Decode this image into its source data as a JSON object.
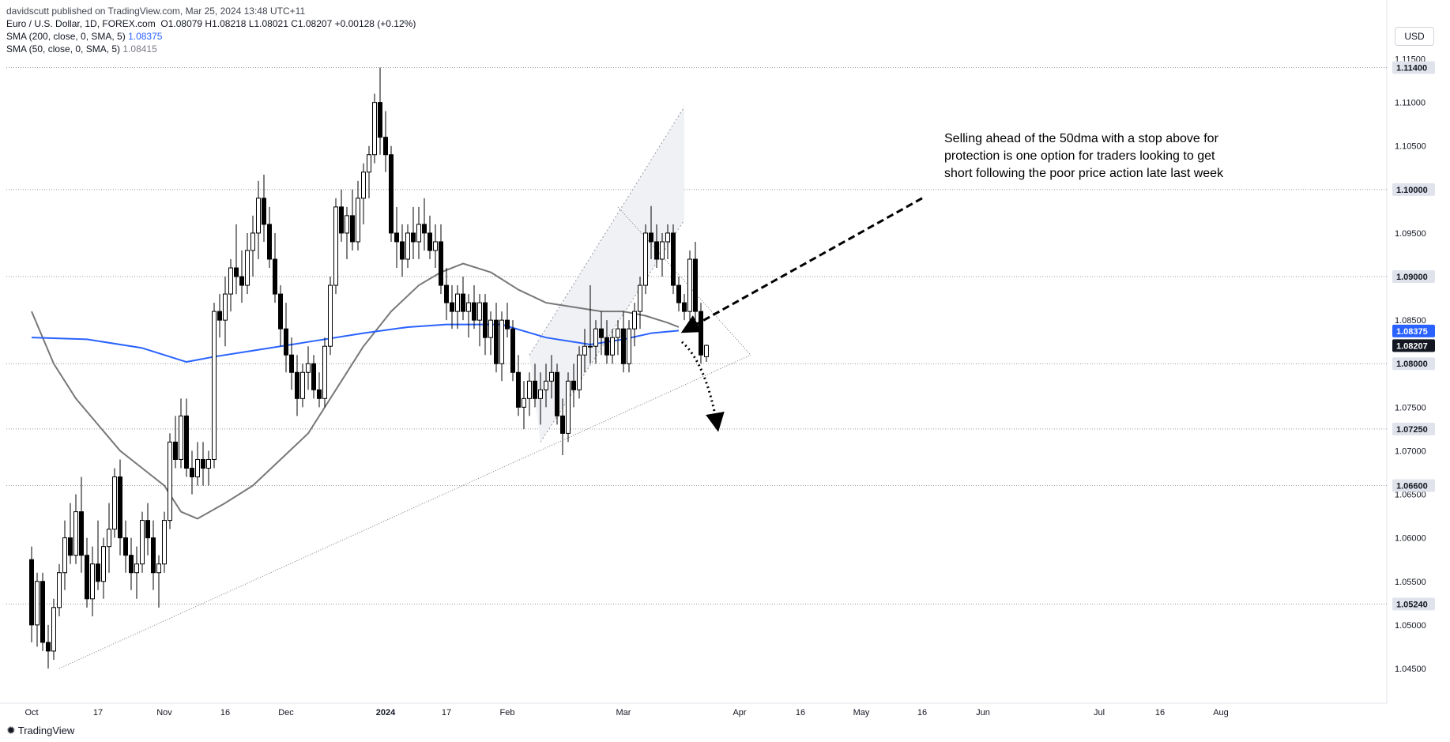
{
  "header": {
    "publisher_line": "davidscutt published on TradingView.com, Mar 25, 2024 13:48 UTC+11",
    "symbol_line": "Euro / U.S. Dollar, 1D, FOREX.com",
    "ohlc": "O1.08079  H1.08218  L1.08021  C1.08207  +0.00128 (+0.12%)",
    "sma200_label": "SMA (200, close, 0, SMA, 5)",
    "sma200_value": "1.08375",
    "sma50_label": "SMA (50, close, 0, SMA, 5)",
    "sma50_value": "1.08415"
  },
  "currency": "USD",
  "brand": "TradingView",
  "colors": {
    "up_candle": "#ffffff",
    "down_candle": "#000000",
    "sma200": "#2962ff",
    "sma50": "#787878",
    "price_badge": "#131722"
  },
  "chart_data": {
    "type": "candlestick",
    "symbol": "EURUSD",
    "timeframe": "1D",
    "ylim": [
      1.043,
      1.1165
    ],
    "y_ticks": [
      "1.04500",
      "1.05000",
      "1.05500",
      "1.06000",
      "1.06500",
      "1.07000",
      "1.07500",
      "1.08000",
      "1.08500",
      "1.09000",
      "1.09500",
      "1.10000",
      "1.10500",
      "1.11000",
      "1.11500"
    ],
    "x_ticks": [
      {
        "label": "Oct",
        "i": 0
      },
      {
        "label": "17",
        "i": 12
      },
      {
        "label": "Nov",
        "i": 24
      },
      {
        "label": "16",
        "i": 35
      },
      {
        "label": "Dec",
        "i": 46
      },
      {
        "label": "2024",
        "i": 64
      },
      {
        "label": "17",
        "i": 75
      },
      {
        "label": "Feb",
        "i": 86
      },
      {
        "label": "Mar",
        "i": 107
      },
      {
        "label": "Apr",
        "i": 128
      },
      {
        "label": "16",
        "i": 139
      },
      {
        "label": "May",
        "i": 150
      },
      {
        "label": "16",
        "i": 161
      },
      {
        "label": "Jun",
        "i": 172
      },
      {
        "label": "Jul",
        "i": 193
      },
      {
        "label": "16",
        "i": 204
      },
      {
        "label": "Aug",
        "i": 215
      }
    ],
    "levels": [
      {
        "value": 1.114,
        "label": "1.11400"
      },
      {
        "value": 1.1,
        "label": "1.10000"
      },
      {
        "value": 1.09,
        "label": "1.09000"
      },
      {
        "value": 1.08,
        "label": "1.08000"
      },
      {
        "value": 1.0725,
        "label": "1.07250"
      },
      {
        "value": 1.066,
        "label": "1.06600"
      },
      {
        "value": 1.0524,
        "label": "1.05240"
      }
    ],
    "price_tags": [
      {
        "value": 1.08375,
        "label": "1.08375",
        "kind": "sma200"
      },
      {
        "value": 1.08207,
        "label": "1.08207",
        "kind": "last"
      }
    ],
    "candles": [
      [
        1.0575,
        1.059,
        1.048,
        1.05
      ],
      [
        1.05,
        1.056,
        1.0475,
        1.055
      ],
      [
        1.055,
        1.056,
        1.047,
        1.048
      ],
      [
        1.048,
        1.05,
        1.045,
        1.047
      ],
      [
        1.047,
        1.053,
        1.046,
        1.052
      ],
      [
        1.052,
        1.057,
        1.051,
        1.056
      ],
      [
        1.056,
        1.062,
        1.054,
        1.06
      ],
      [
        1.06,
        1.064,
        1.057,
        1.058
      ],
      [
        1.058,
        1.065,
        1.057,
        1.063
      ],
      [
        1.063,
        1.067,
        1.056,
        1.058
      ],
      [
        1.058,
        1.06,
        1.052,
        1.053
      ],
      [
        1.053,
        1.059,
        1.051,
        1.057
      ],
      [
        1.057,
        1.062,
        1.054,
        1.055
      ],
      [
        1.055,
        1.06,
        1.053,
        1.059
      ],
      [
        1.059,
        1.064,
        1.056,
        1.061
      ],
      [
        1.061,
        1.068,
        1.06,
        1.067
      ],
      [
        1.067,
        1.069,
        1.058,
        1.06
      ],
      [
        1.06,
        1.062,
        1.056,
        1.058
      ],
      [
        1.058,
        1.06,
        1.054,
        1.056
      ],
      [
        1.056,
        1.059,
        1.053,
        1.057
      ],
      [
        1.057,
        1.063,
        1.056,
        1.062
      ],
      [
        1.062,
        1.064,
        1.058,
        1.06
      ],
      [
        1.06,
        1.062,
        1.054,
        1.056
      ],
      [
        1.056,
        1.058,
        1.052,
        1.057
      ],
      [
        1.057,
        1.063,
        1.056,
        1.062
      ],
      [
        1.062,
        1.072,
        1.061,
        1.071
      ],
      [
        1.071,
        1.074,
        1.068,
        1.069
      ],
      [
        1.069,
        1.076,
        1.068,
        1.074
      ],
      [
        1.074,
        1.076,
        1.067,
        1.068
      ],
      [
        1.068,
        1.07,
        1.065,
        1.067
      ],
      [
        1.067,
        1.071,
        1.066,
        1.069
      ],
      [
        1.069,
        1.071,
        1.066,
        1.068
      ],
      [
        1.068,
        1.07,
        1.066,
        1.069
      ],
      [
        1.069,
        1.087,
        1.068,
        1.086
      ],
      [
        1.086,
        1.088,
        1.083,
        1.085
      ],
      [
        1.085,
        1.09,
        1.082,
        1.088
      ],
      [
        1.088,
        1.092,
        1.086,
        1.091
      ],
      [
        1.091,
        1.096,
        1.088,
        1.09
      ],
      [
        1.09,
        1.093,
        1.087,
        1.089
      ],
      [
        1.089,
        1.095,
        1.088,
        1.093
      ],
      [
        1.093,
        1.097,
        1.09,
        1.095
      ],
      [
        1.095,
        1.101,
        1.092,
        1.099
      ],
      [
        1.099,
        1.1017,
        1.094,
        1.096
      ],
      [
        1.096,
        1.098,
        1.091,
        1.092
      ],
      [
        1.092,
        1.095,
        1.087,
        1.088
      ],
      [
        1.088,
        1.089,
        1.082,
        1.084
      ],
      [
        1.084,
        1.087,
        1.079,
        1.081
      ],
      [
        1.081,
        1.083,
        1.077,
        1.079
      ],
      [
        1.079,
        1.081,
        1.074,
        1.076
      ],
      [
        1.076,
        1.08,
        1.075,
        1.079
      ],
      [
        1.079,
        1.082,
        1.077,
        1.08
      ],
      [
        1.08,
        1.081,
        1.076,
        1.077
      ],
      [
        1.077,
        1.079,
        1.075,
        1.076
      ],
      [
        1.076,
        1.083,
        1.075,
        1.082
      ],
      [
        1.082,
        1.09,
        1.081,
        1.089
      ],
      [
        1.089,
        1.099,
        1.088,
        1.098
      ],
      [
        1.098,
        1.1,
        1.094,
        1.095
      ],
      [
        1.095,
        1.098,
        1.092,
        1.097
      ],
      [
        1.097,
        1.1,
        1.093,
        1.094
      ],
      [
        1.094,
        1.101,
        1.093,
        1.099
      ],
      [
        1.099,
        1.103,
        1.096,
        1.102
      ],
      [
        1.102,
        1.105,
        1.099,
        1.104
      ],
      [
        1.104,
        1.111,
        1.103,
        1.11
      ],
      [
        1.11,
        1.114,
        1.104,
        1.106
      ],
      [
        1.106,
        1.109,
        1.102,
        1.104
      ],
      [
        1.104,
        1.105,
        1.094,
        1.095
      ],
      [
        1.095,
        1.098,
        1.091,
        1.094
      ],
      [
        1.094,
        1.096,
        1.09,
        1.092
      ],
      [
        1.092,
        1.096,
        1.091,
        1.095
      ],
      [
        1.095,
        1.098,
        1.092,
        1.094
      ],
      [
        1.094,
        1.098,
        1.092,
        1.096
      ],
      [
        1.096,
        1.099,
        1.093,
        1.095
      ],
      [
        1.095,
        1.097,
        1.092,
        1.093
      ],
      [
        1.093,
        1.096,
        1.091,
        1.094
      ],
      [
        1.094,
        1.096,
        1.088,
        1.089
      ],
      [
        1.089,
        1.091,
        1.085,
        1.087
      ],
      [
        1.087,
        1.089,
        1.084,
        1.086
      ],
      [
        1.086,
        1.089,
        1.084,
        1.088
      ],
      [
        1.088,
        1.09,
        1.085,
        1.086
      ],
      [
        1.086,
        1.088,
        1.083,
        1.087
      ],
      [
        1.087,
        1.089,
        1.084,
        1.085
      ],
      [
        1.085,
        1.088,
        1.082,
        1.087
      ],
      [
        1.087,
        1.088,
        1.081,
        1.083
      ],
      [
        1.083,
        1.086,
        1.081,
        1.085
      ],
      [
        1.085,
        1.087,
        1.079,
        1.08
      ],
      [
        1.08,
        1.086,
        1.078,
        1.085
      ],
      [
        1.085,
        1.087,
        1.083,
        1.084
      ],
      [
        1.084,
        1.085,
        1.078,
        1.079
      ],
      [
        1.079,
        1.081,
        1.074,
        1.075
      ],
      [
        1.075,
        1.078,
        1.0725,
        1.076
      ],
      [
        1.076,
        1.079,
        1.074,
        1.078
      ],
      [
        1.078,
        1.08,
        1.075,
        1.076
      ],
      [
        1.076,
        1.079,
        1.073,
        1.077
      ],
      [
        1.077,
        1.08,
        1.075,
        1.078
      ],
      [
        1.078,
        1.081,
        1.076,
        1.079
      ],
      [
        1.079,
        1.08,
        1.073,
        1.074
      ],
      [
        1.074,
        1.076,
        1.0695,
        1.072
      ],
      [
        1.072,
        1.079,
        1.071,
        1.078
      ],
      [
        1.078,
        1.08,
        1.075,
        1.077
      ],
      [
        1.077,
        1.082,
        1.076,
        1.081
      ],
      [
        1.081,
        1.084,
        1.079,
        1.082
      ],
      [
        1.082,
        1.089,
        1.08,
        1.082
      ],
      [
        1.082,
        1.085,
        1.08,
        1.084
      ],
      [
        1.084,
        1.086,
        1.081,
        1.083
      ],
      [
        1.083,
        1.085,
        1.08,
        1.081
      ],
      [
        1.081,
        1.084,
        1.08,
        1.083
      ],
      [
        1.083,
        1.085,
        1.081,
        1.084
      ],
      [
        1.084,
        1.086,
        1.079,
        1.08
      ],
      [
        1.08,
        1.085,
        1.079,
        1.084
      ],
      [
        1.084,
        1.087,
        1.082,
        1.086
      ],
      [
        1.086,
        1.09,
        1.084,
        1.089
      ],
      [
        1.089,
        1.096,
        1.088,
        1.095
      ],
      [
        1.095,
        1.0981,
        1.092,
        1.094
      ],
      [
        1.094,
        1.096,
        1.091,
        1.092
      ],
      [
        1.092,
        1.095,
        1.09,
        1.094
      ],
      [
        1.094,
        1.096,
        1.092,
        1.095
      ],
      [
        1.095,
        1.096,
        1.088,
        1.089
      ],
      [
        1.089,
        1.09,
        1.086,
        1.087
      ],
      [
        1.087,
        1.088,
        1.085,
        1.086
      ],
      [
        1.086,
        1.093,
        1.085,
        1.092
      ],
      [
        1.092,
        1.094,
        1.085,
        1.086
      ],
      [
        1.086,
        1.087,
        1.08,
        1.081
      ],
      [
        1.0808,
        1.0822,
        1.0802,
        1.0821
      ]
    ],
    "sma200": [
      [
        0,
        1.083
      ],
      [
        10,
        1.0828
      ],
      [
        20,
        1.0818
      ],
      [
        28,
        1.0802
      ],
      [
        33,
        1.0808
      ],
      [
        40,
        1.0815
      ],
      [
        50,
        1.0825
      ],
      [
        60,
        1.0835
      ],
      [
        68,
        1.0842
      ],
      [
        75,
        1.0845
      ],
      [
        85,
        1.0845
      ],
      [
        93,
        1.083
      ],
      [
        101,
        1.0822
      ],
      [
        107,
        1.0828
      ],
      [
        112,
        1.0835
      ],
      [
        117,
        1.0838
      ]
    ],
    "sma50": [
      [
        0,
        1.086
      ],
      [
        4,
        1.08
      ],
      [
        8,
        1.076
      ],
      [
        12,
        1.073
      ],
      [
        16,
        1.07
      ],
      [
        20,
        1.068
      ],
      [
        24,
        1.066
      ],
      [
        27,
        1.063
      ],
      [
        30,
        1.0622
      ],
      [
        35,
        1.064
      ],
      [
        40,
        1.066
      ],
      [
        45,
        1.069
      ],
      [
        50,
        1.072
      ],
      [
        55,
        1.077
      ],
      [
        60,
        1.082
      ],
      [
        65,
        1.086
      ],
      [
        70,
        1.089
      ],
      [
        74,
        1.0905
      ],
      [
        78,
        1.0915
      ],
      [
        83,
        1.0905
      ],
      [
        88,
        1.0885
      ],
      [
        93,
        1.087
      ],
      [
        98,
        1.0865
      ],
      [
        103,
        1.086
      ],
      [
        107,
        1.086
      ],
      [
        111,
        1.0855
      ],
      [
        115,
        1.0847
      ],
      [
        117,
        1.0842
      ]
    ],
    "annotation": "Selling ahead of the 50dma with a stop above for\nprotection is one option for traders looking to get\nshort following the poor price action late last week",
    "drawings": {
      "lower_trendline": [
        [
          5,
          1.045
        ],
        [
          130,
          1.081
        ]
      ],
      "resistance_line": [
        [
          106,
          1.098
        ],
        [
          130,
          1.081
        ]
      ],
      "channel_lower": [
        [
          92,
          1.071
        ],
        [
          118,
          1.0965
        ]
      ],
      "channel_upper": [
        [
          90,
          1.081
        ],
        [
          118,
          1.1095
        ]
      ],
      "dashed_arrow": {
        "from": [
          161,
          1.099
        ],
        "to": [
          117,
          1.0838
        ]
      },
      "dotted_arrow": {
        "from": [
          117,
          1.0825
        ],
        "via": [
          122,
          1.08
        ],
        "to": [
          124,
          1.0727
        ]
      }
    }
  }
}
